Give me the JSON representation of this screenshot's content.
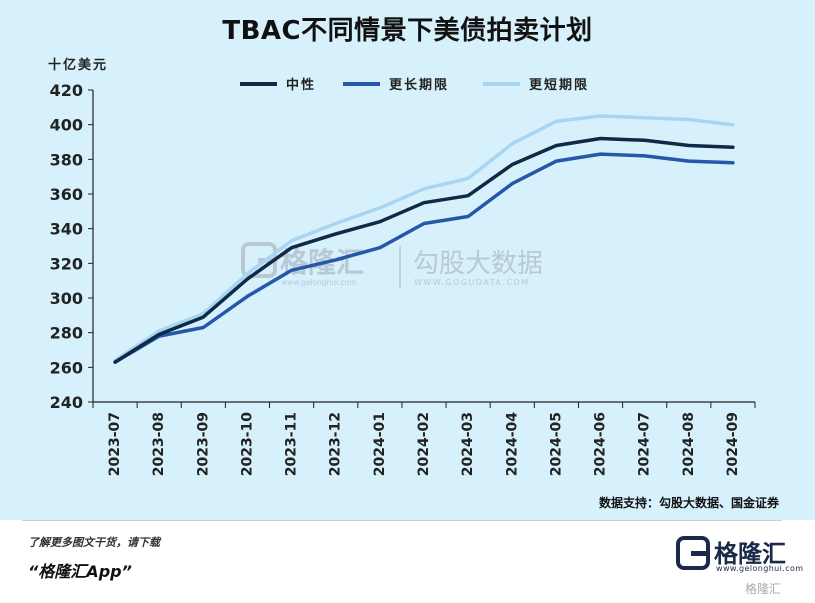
{
  "title": "TBAC不同情景下美债拍卖计划",
  "unit_label": "十亿美元",
  "source": "数据支持：勾股大数据、国金证券",
  "watermarks": {
    "left_name": "格隆汇",
    "left_url": "www.gelonghui.com",
    "right_name": "勾股大数据",
    "right_url": "WWW.GOGUDATA.COM"
  },
  "footer": {
    "promo_line1": "了解更多图文干货，请下载",
    "promo_line2": "“格隆汇App”",
    "brand_name": "格隆汇",
    "brand_url": "www.gelonghui.com",
    "corner_mark": "格隆汇"
  },
  "chart_data": {
    "type": "line",
    "title": "TBAC不同情景下美债拍卖计划",
    "ylabel": "十亿美元",
    "xlabel": "",
    "ylim": [
      240,
      420
    ],
    "yticks": [
      240,
      260,
      280,
      300,
      320,
      340,
      360,
      380,
      400,
      420
    ],
    "grid": false,
    "legend_position": "top",
    "categories": [
      "2023-07",
      "2023-08",
      "2023-09",
      "2023-10",
      "2023-11",
      "2023-12",
      "2024-01",
      "2024-02",
      "2024-03",
      "2024-04",
      "2024-05",
      "2024-06",
      "2024-07",
      "2024-08",
      "2024-09"
    ],
    "series": [
      {
        "name": "中性",
        "color": "#0e2a47",
        "values": [
          263,
          279,
          289,
          311,
          329,
          337,
          344,
          355,
          359,
          377,
          388,
          392,
          391,
          388,
          387
        ]
      },
      {
        "name": "更长期限",
        "color": "#2558a8",
        "values": [
          263,
          278,
          283,
          301,
          316,
          322,
          329,
          343,
          347,
          366,
          379,
          383,
          382,
          379,
          378
        ]
      },
      {
        "name": "更短期限",
        "color": "#a8d5f2",
        "values": [
          264,
          281,
          291,
          314,
          333,
          343,
          352,
          363,
          369,
          389,
          402,
          405,
          404,
          403,
          400
        ]
      }
    ]
  }
}
